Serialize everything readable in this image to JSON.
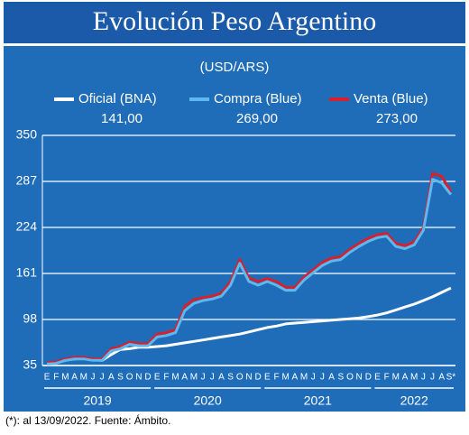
{
  "chart_data": {
    "type": "line",
    "title": "Evolución Peso Argentino",
    "subtitle": "(USD/ARS)",
    "categories": [
      "E",
      "F",
      "M",
      "A",
      "M",
      "J",
      "J",
      "A",
      "S",
      "O",
      "N",
      "D",
      "E",
      "F",
      "M",
      "A",
      "M",
      "J",
      "J",
      "A",
      "S",
      "O",
      "N",
      "D",
      "E",
      "F",
      "M",
      "A",
      "M",
      "J",
      "J",
      "A",
      "S",
      "O",
      "N",
      "D",
      "E",
      "F",
      "M",
      "A",
      "M",
      "J",
      "J",
      "A",
      "S*"
    ],
    "years": [
      "2019",
      "2020",
      "2021",
      "2022"
    ],
    "series": [
      {
        "name": "Oficial (BNA)",
        "legend_value": "141,00",
        "color": "#ffffff",
        "values": [
          38,
          39,
          42,
          44,
          45,
          43,
          42,
          50,
          57,
          58,
          60,
          60,
          61,
          62,
          64,
          66,
          68,
          70,
          72,
          74,
          76,
          78,
          81,
          84,
          87,
          89,
          92,
          93,
          94,
          95,
          96,
          97,
          98,
          99,
          100,
          102,
          104,
          107,
          111,
          115,
          119,
          124,
          129,
          135,
          141
        ]
      },
      {
        "name": "Venta (Blue)",
        "legend_value": "273,00",
        "color": "#d8202c",
        "values": [
          39,
          40,
          44,
          46,
          46,
          44,
          44,
          58,
          61,
          67,
          65,
          65,
          78,
          80,
          84,
          116,
          125,
          128,
          130,
          134,
          150,
          180,
          155,
          150,
          154,
          150,
          142,
          142,
          156,
          166,
          176,
          182,
          184,
          194,
          202,
          209,
          214,
          216,
          202,
          199,
          204,
          224,
          298,
          294,
          273
        ]
      },
      {
        "name": "Compra (Blue)",
        "legend_value": "269,00",
        "color": "#5cb8ee",
        "values": [
          37,
          38,
          42,
          44,
          44,
          42,
          42,
          55,
          58,
          64,
          62,
          62,
          74,
          76,
          80,
          110,
          120,
          124,
          126,
          130,
          145,
          175,
          150,
          145,
          150,
          145,
          138,
          138,
          152,
          162,
          172,
          178,
          180,
          190,
          198,
          205,
          210,
          212,
          198,
          195,
          200,
          220,
          290,
          285,
          269
        ]
      }
    ],
    "legend_order": [
      0,
      2,
      1
    ],
    "ylim": [
      35,
      350
    ],
    "yticks": [
      35,
      98,
      161,
      224,
      287,
      350
    ],
    "grid": true,
    "footnote": "(*): al 13/09/2022. Fuente: Ámbito."
  }
}
